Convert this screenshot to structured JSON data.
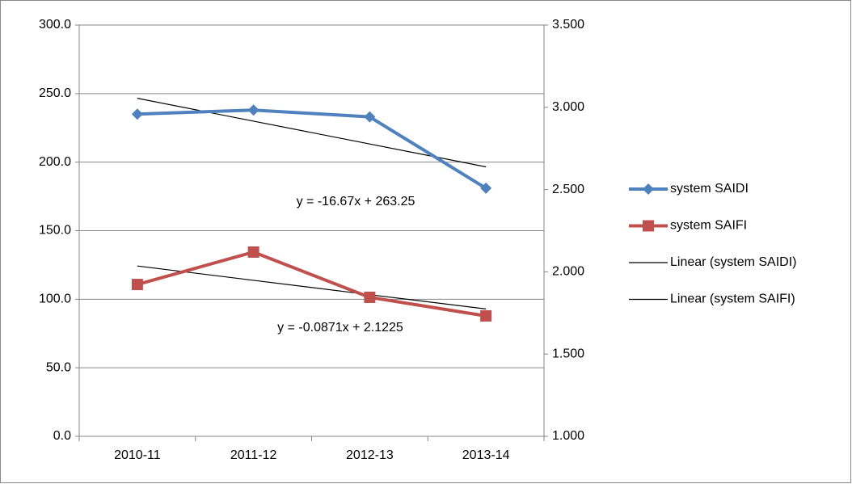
{
  "chart_data": {
    "type": "line",
    "categories": [
      "2010-11",
      "2011-12",
      "2012-13",
      "2013-14"
    ],
    "series": [
      {
        "name": "system SAIDI",
        "color": "#4f81bd",
        "marker": "diamond",
        "values": [
          235,
          238,
          233,
          181
        ]
      },
      {
        "name": "system SAIFI",
        "color": "#c0504d",
        "marker": "square",
        "axis": "y2",
        "values": [
          1.923,
          2.12,
          1.845,
          1.732
        ]
      },
      {
        "name": "Linear (system SAIDI)",
        "color": "#000000",
        "values": [
          246.58,
          229.91,
          213.24,
          196.57
        ]
      },
      {
        "name": "Linear (system SAIFI)",
        "color": "#000000",
        "axis": "y2",
        "values": [
          2.0354,
          1.9483,
          1.8612,
          1.7741
        ]
      }
    ],
    "annotations": [
      "y = -16.67x + 263.25",
      "y = -0.0871x + 2.1225"
    ],
    "ylim": [
      0,
      300
    ],
    "yticks": [
      {
        "value": 0,
        "label": "0.0"
      },
      {
        "value": 50,
        "label": "50.0"
      },
      {
        "value": 100,
        "label": "100.0"
      },
      {
        "value": 150,
        "label": "150.0"
      },
      {
        "value": 200,
        "label": "200.0"
      },
      {
        "value": 250,
        "label": "250.0"
      },
      {
        "value": 300,
        "label": "300.0"
      }
    ],
    "y2lim": [
      1,
      3.5
    ],
    "y2ticks": [
      {
        "value": 1,
        "label": "1.000"
      },
      {
        "value": 1.5,
        "label": "1.500"
      },
      {
        "value": 2,
        "label": "2.000"
      },
      {
        "value": 2.5,
        "label": "2.500"
      },
      {
        "value": 3,
        "label": "3.000"
      },
      {
        "value": 3.5,
        "label": "3.500"
      }
    ],
    "grid": true,
    "legend": "right"
  }
}
